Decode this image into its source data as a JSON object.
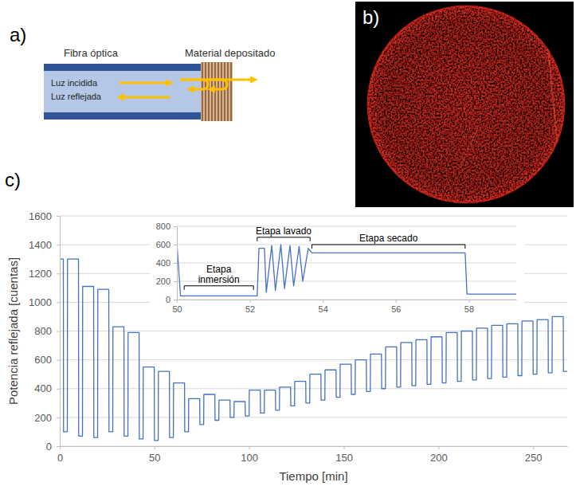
{
  "panel_a": {
    "letter": "a)",
    "fiber_label": "Fibra óptica",
    "material_label": "Material depositado",
    "light_labels": [
      "Luz incidida",
      "Luz reflejada"
    ]
  },
  "panel_b": {
    "letter": "b)"
  },
  "panel_c": {
    "letter": "c)"
  },
  "chart_data": [
    {
      "type": "line",
      "x_label": "Tiempo [min]",
      "y_label": "Potencia reflejada [cuentas]",
      "color": "#4472c4",
      "grid": true,
      "xlim": [
        0,
        268
      ],
      "xticks": [
        0,
        50,
        100,
        150,
        200,
        250
      ],
      "ylim": [
        0,
        1600
      ],
      "yticks": [
        0,
        200,
        400,
        600,
        800,
        1000,
        1200,
        1400,
        1600
      ],
      "x": [
        0,
        1.9,
        2,
        4,
        4.1,
        9.9,
        10,
        12,
        12.1,
        17.9,
        18,
        20,
        20.1,
        25.9,
        26,
        28,
        28.1,
        33.9,
        34,
        36,
        36.1,
        41.9,
        42,
        44,
        44.1,
        49.9,
        50,
        52,
        52.1,
        57.9,
        58,
        60,
        60.1,
        65.9,
        66,
        68,
        68.1,
        73.9,
        74,
        76,
        76.1,
        81.9,
        82,
        84,
        84.1,
        89.9,
        90,
        92,
        92.1,
        97.9,
        98,
        100,
        100.1,
        105.9,
        106,
        108,
        108.1,
        113.9,
        114,
        116,
        116.1,
        121.9,
        122,
        124,
        124.1,
        129.9,
        130,
        132,
        132.1,
        137.9,
        138,
        140,
        140.1,
        145.9,
        146,
        148,
        148.1,
        153.9,
        154,
        156,
        156.1,
        161.9,
        162,
        164,
        164.1,
        169.9,
        170,
        172,
        172.1,
        177.9,
        178,
        180,
        180.1,
        185.9,
        186,
        188,
        188.1,
        193.9,
        194,
        196,
        196.1,
        201.9,
        202,
        204,
        204.1,
        209.9,
        210,
        212,
        212.1,
        217.9,
        218,
        220,
        220.1,
        225.9,
        226,
        228,
        228.1,
        233.9,
        234,
        236,
        236.1,
        241.9,
        242,
        244,
        244.1,
        249.9,
        250,
        252,
        252.1,
        257.9,
        258,
        260,
        260.1,
        265.9,
        266,
        268
      ],
      "values": [
        1300,
        1300,
        100,
        100,
        1300,
        1300,
        70,
        70,
        1110,
        1110,
        60,
        60,
        1090,
        1090,
        100,
        100,
        830,
        830,
        70,
        70,
        790,
        790,
        50,
        50,
        550,
        550,
        40,
        40,
        520,
        520,
        60,
        60,
        440,
        440,
        100,
        100,
        330,
        330,
        150,
        150,
        360,
        360,
        180,
        180,
        320,
        320,
        200,
        200,
        310,
        310,
        210,
        210,
        390,
        390,
        230,
        230,
        390,
        390,
        250,
        250,
        410,
        410,
        280,
        280,
        450,
        450,
        300,
        300,
        500,
        500,
        320,
        320,
        530,
        530,
        340,
        340,
        570,
        570,
        360,
        360,
        600,
        600,
        380,
        380,
        640,
        640,
        400,
        400,
        690,
        690,
        410,
        410,
        720,
        720,
        420,
        420,
        740,
        740,
        430,
        430,
        760,
        760,
        440,
        440,
        790,
        790,
        450,
        450,
        800,
        800,
        460,
        460,
        820,
        820,
        470,
        470,
        840,
        840,
        480,
        480,
        850,
        850,
        490,
        490,
        870,
        870,
        500,
        500,
        880,
        880,
        510,
        510,
        900,
        900,
        520,
        520
      ]
    },
    {
      "type": "line",
      "color": "#4472c4",
      "grid": true,
      "xlim": [
        50,
        59.3
      ],
      "xticks": [
        50,
        52,
        54,
        56,
        58
      ],
      "ylim": [
        0,
        800
      ],
      "yticks": [
        0,
        200,
        400,
        600,
        800
      ],
      "x": [
        50,
        50.1,
        52.2,
        52.25,
        52.4,
        52.45,
        52.6,
        52.7,
        52.85,
        52.95,
        53.1,
        53.2,
        53.35,
        53.45,
        53.6,
        53.7,
        57.9,
        57.95,
        59.3
      ],
      "values": [
        620,
        40,
        40,
        560,
        560,
        80,
        590,
        100,
        600,
        120,
        590,
        150,
        580,
        200,
        560,
        510,
        510,
        60,
        60
      ],
      "annotations": [
        {
          "text": "Etapa inmersión",
          "x": [
            50.2,
            52.1
          ],
          "y": 150
        },
        {
          "text": "Etapa lavado",
          "x": [
            52.2,
            53.65
          ],
          "y": 680
        },
        {
          "text": "Etapa secado",
          "x": [
            53.7,
            57.9
          ],
          "y": 600
        }
      ]
    }
  ]
}
